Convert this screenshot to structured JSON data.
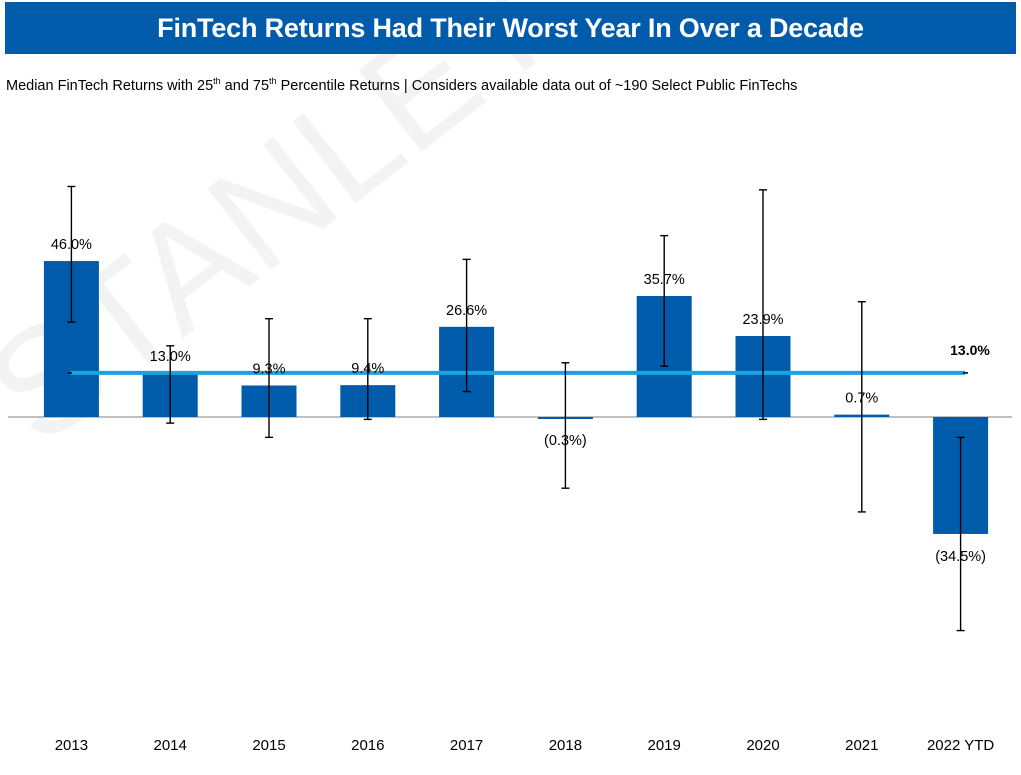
{
  "header": {
    "title": "FinTech Returns Had Their Worst Year In Over a Decade"
  },
  "subtitle": {
    "part1": "Median FinTech Returns with 25",
    "sup1": "th",
    "part2": " and 75",
    "sup2": "th",
    "part3": " Percentile Returns | Considers available data out of ~190 Select Public FinTechs"
  },
  "watermark": {
    "text": "STANLEY"
  },
  "colors": {
    "bar": "#005bab",
    "average_line": "#1aa3e0",
    "whisker": "#000000",
    "banner": "#005bab"
  },
  "chart_data": {
    "type": "bar",
    "categories": [
      "2013",
      "2014",
      "2015",
      "2016",
      "2017",
      "2018",
      "2019",
      "2020",
      "2021",
      "2022 YTD"
    ],
    "values": [
      46.0,
      13.0,
      9.3,
      9.4,
      26.6,
      -0.3,
      35.7,
      23.9,
      0.7,
      -34.5
    ],
    "value_labels": [
      "46.0%",
      "13.0%",
      "9.3%",
      "9.4%",
      "26.6%",
      "(0.3%)",
      "35.7%",
      "23.9%",
      "0.7%",
      "(34.5%)"
    ],
    "p25": [
      28.0,
      -1.8,
      -6.0,
      -0.7,
      7.5,
      -21.0,
      15.0,
      -0.7,
      -28.0,
      -63.0
    ],
    "p75": [
      68.0,
      21.0,
      29.0,
      29.0,
      46.5,
      16.0,
      53.5,
      67.0,
      34.0,
      -6.0
    ],
    "average_line": {
      "value": 13.0,
      "label": "13.0%"
    },
    "ylim": [
      -70,
      75
    ],
    "grid": false,
    "legend": "none"
  }
}
